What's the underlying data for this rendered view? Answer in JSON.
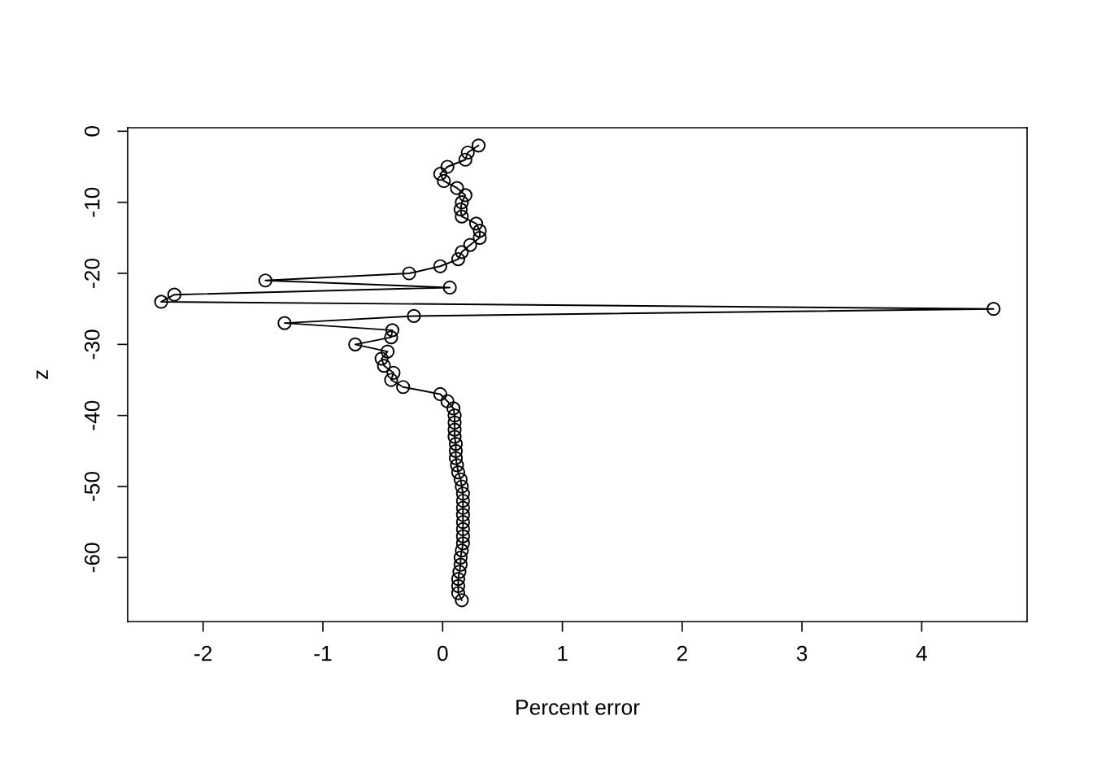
{
  "chart_data": {
    "type": "line",
    "xlabel": "Percent error",
    "ylabel": "z",
    "x": [
      0.3,
      0.21,
      0.19,
      0.04,
      -0.02,
      0.01,
      0.12,
      0.19,
      0.16,
      0.15,
      0.16,
      0.28,
      0.31,
      0.31,
      0.23,
      0.16,
      0.13,
      -0.02,
      -0.28,
      -1.48,
      0.06,
      -2.24,
      -2.35,
      4.6,
      -0.24,
      -1.32,
      -0.42,
      -0.43,
      -0.73,
      -0.46,
      -0.51,
      -0.49,
      -0.41,
      -0.43,
      -0.33,
      -0.02,
      0.04,
      0.09,
      0.1,
      0.1,
      0.1,
      0.1,
      0.11,
      0.11,
      0.11,
      0.12,
      0.13,
      0.15,
      0.16,
      0.17,
      0.17,
      0.17,
      0.17,
      0.17,
      0.17,
      0.17,
      0.17,
      0.16,
      0.15,
      0.15,
      0.14,
      0.13,
      0.13,
      0.13,
      0.16
    ],
    "series": [
      {
        "color": "#000000",
        "values": [
          -2,
          -3,
          -4,
          -5,
          -6,
          -7,
          -8,
          -9,
          -10,
          -11,
          -12,
          -13,
          -14,
          -15,
          -16,
          -17,
          -18,
          -19,
          -20,
          -21,
          -22,
          -23,
          -24,
          -25,
          -26,
          -27,
          -28,
          -29,
          -30,
          -31,
          -32,
          -33,
          -34,
          -35,
          -36,
          -37,
          -38,
          -39,
          -40,
          -41,
          -42,
          -43,
          -44,
          -45,
          -46,
          -47,
          -48,
          -49,
          -50,
          -51,
          -52,
          -53,
          -54,
          -55,
          -56,
          -57,
          -58,
          -59,
          -60,
          -61,
          -62,
          -63,
          -64,
          -65,
          -66
        ]
      }
    ],
    "xlim": [
      -2.63,
      4.88
    ],
    "xticks": [
      -2,
      -1,
      0,
      1,
      2,
      3,
      4
    ],
    "ylim": [
      -69.0,
      0.5
    ],
    "yticks": [
      0,
      -10,
      -20,
      -30,
      -40,
      -50,
      -60
    ],
    "marker": "circle",
    "line_style": "solid",
    "grid": false,
    "legend": false
  }
}
